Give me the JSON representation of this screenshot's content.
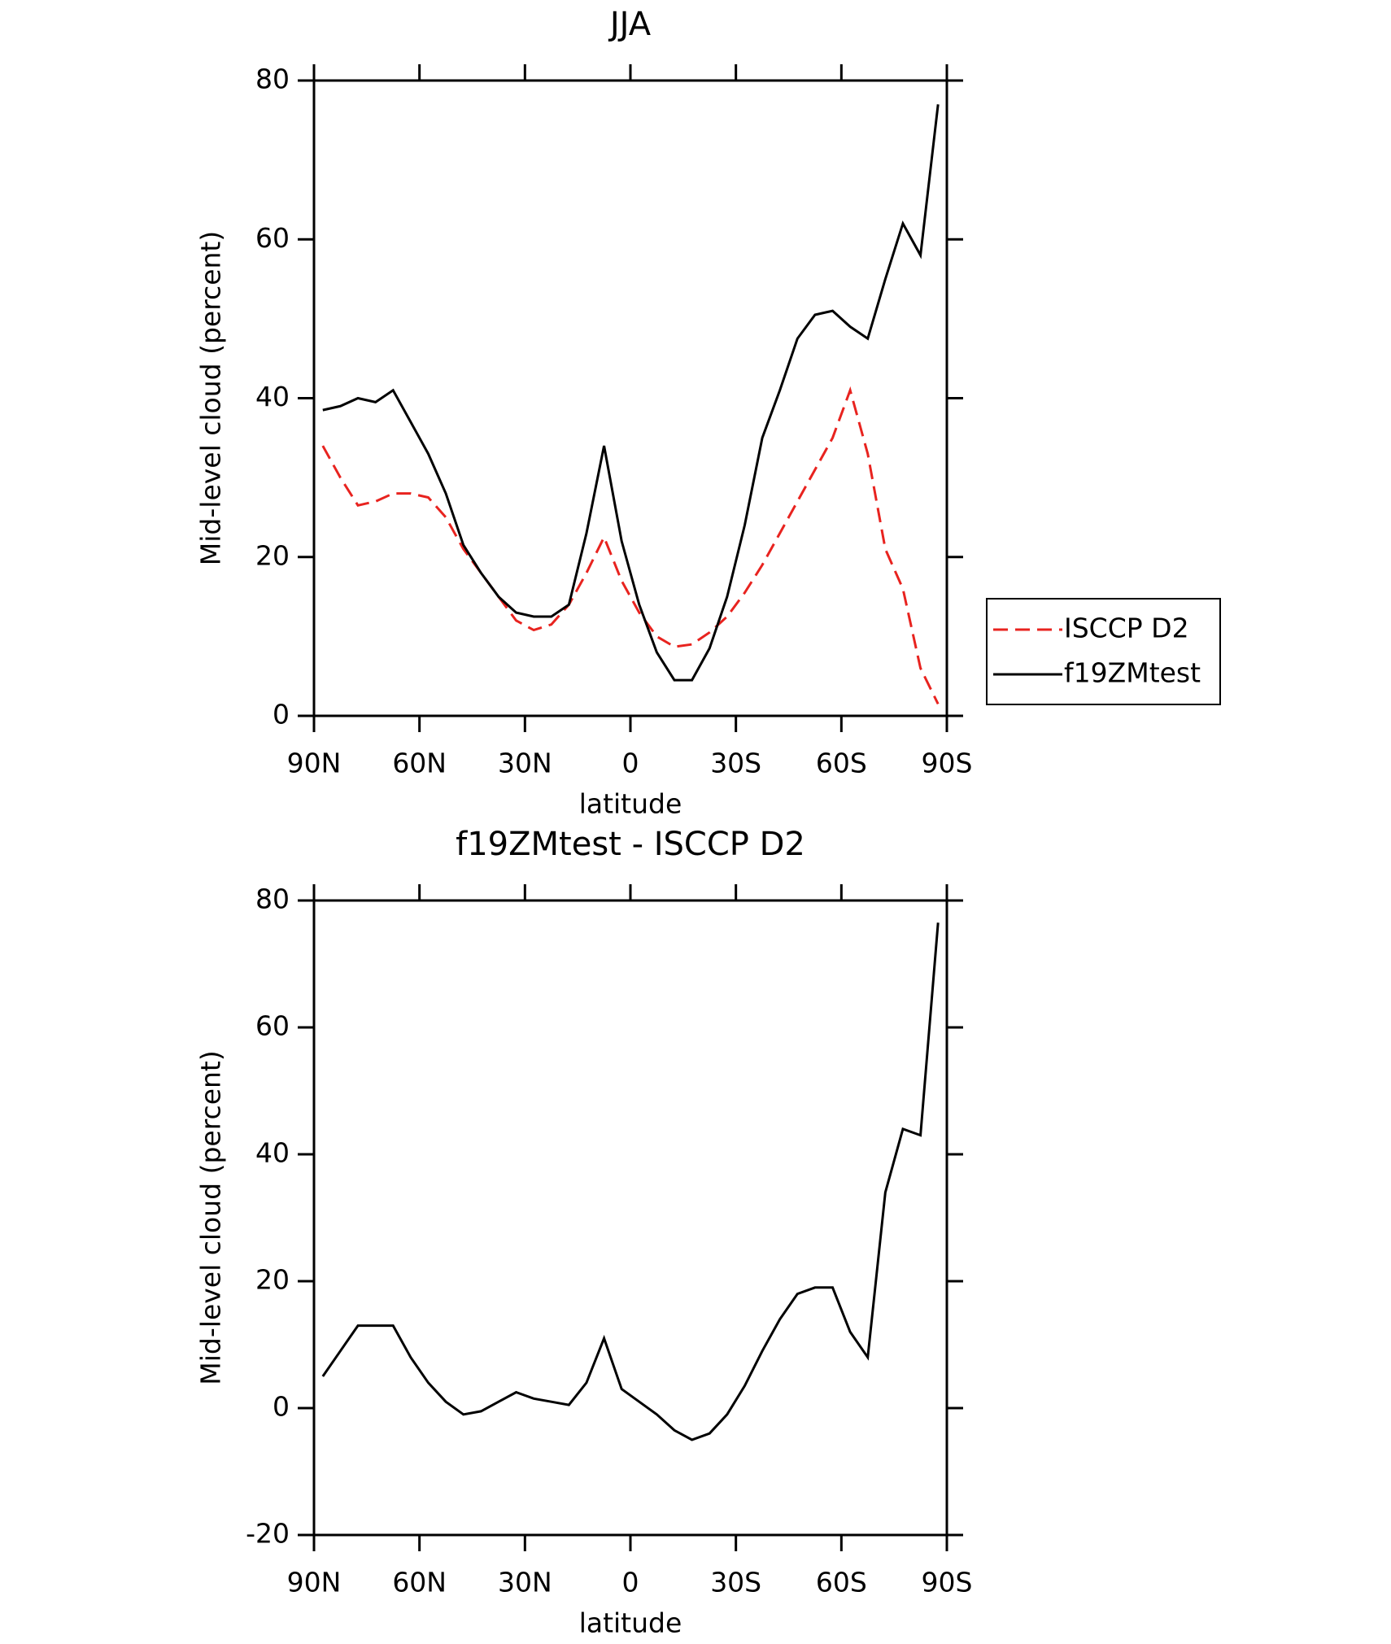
{
  "chart_data": [
    {
      "type": "line",
      "title": "JJA",
      "x_label": "latitude",
      "y_label": "Mid-level cloud (percent)",
      "x": [
        87.5,
        82.5,
        77.5,
        72.5,
        67.5,
        62.5,
        57.5,
        52.5,
        47.5,
        42.5,
        37.5,
        32.5,
        27.5,
        22.5,
        17.5,
        12.5,
        7.5,
        2.5,
        -2.5,
        -7.5,
        -12.5,
        -17.5,
        -22.5,
        -27.5,
        -32.5,
        -37.5,
        -42.5,
        -47.5,
        -52.5,
        -57.5,
        -62.5,
        -67.5,
        -72.5,
        -77.5,
        -82.5,
        -87.5
      ],
      "series": [
        {
          "name": "ISCCP D2",
          "color": "#e8231f",
          "dash": true,
          "values": [
            34,
            30,
            26.5,
            27,
            28,
            28,
            27.5,
            25,
            21,
            18,
            15,
            12,
            10.8,
            11.5,
            14,
            18,
            22.5,
            17,
            13,
            10,
            8.7,
            9,
            10.5,
            12.5,
            15.5,
            19,
            23,
            27,
            31,
            35,
            41,
            33,
            21,
            16,
            6,
            1.5
          ]
        },
        {
          "name": "f19ZMtest",
          "color": "#000000",
          "dash": false,
          "values": [
            38.5,
            39,
            40,
            39.5,
            41,
            37,
            33,
            28,
            21.5,
            18,
            15,
            13,
            12.5,
            12.5,
            14,
            23,
            34,
            22,
            14,
            8,
            4.5,
            4.5,
            8.5,
            15,
            24,
            35,
            41,
            47.5,
            50.5,
            51,
            49,
            47.5,
            55,
            62,
            58,
            77
          ]
        }
      ],
      "xlim": [
        90,
        -90
      ],
      "xticks": [
        {
          "value": 90,
          "label": "90N"
        },
        {
          "value": 60,
          "label": "60N"
        },
        {
          "value": 30,
          "label": "30N"
        },
        0,
        {
          "value": -30,
          "label": "30S"
        },
        {
          "value": -60,
          "label": "60S"
        },
        {
          "value": -90,
          "label": "90S"
        }
      ],
      "ylim": [
        0,
        80
      ],
      "yticks": [
        0,
        20,
        40,
        60,
        80
      ],
      "legend": "outside-right"
    },
    {
      "type": "line",
      "title": "f19ZMtest - ISCCP D2",
      "x_label": "latitude",
      "y_label": "Mid-level cloud (percent)",
      "x": [
        87.5,
        82.5,
        77.5,
        72.5,
        67.5,
        62.5,
        57.5,
        52.5,
        47.5,
        42.5,
        37.5,
        32.5,
        27.5,
        22.5,
        17.5,
        12.5,
        7.5,
        2.5,
        -2.5,
        -7.5,
        -12.5,
        -17.5,
        -22.5,
        -27.5,
        -32.5,
        -37.5,
        -42.5,
        -47.5,
        -52.5,
        -57.5,
        -62.5,
        -67.5,
        -72.5,
        -77.5,
        -82.5,
        -87.5
      ],
      "series": [
        {
          "color": "#000000",
          "dash": false,
          "values": [
            5,
            9,
            13,
            13,
            13,
            8,
            4,
            1,
            -1,
            -0.5,
            1,
            2.5,
            1.5,
            1,
            0.5,
            4,
            11,
            3,
            1,
            -1,
            -3.5,
            -5,
            -4,
            -1,
            3.5,
            9,
            14,
            18,
            19,
            19,
            12,
            8,
            34,
            44,
            43,
            76.5
          ]
        }
      ],
      "xlim": [
        90,
        -90
      ],
      "xticks": [
        {
          "value": 90,
          "label": "90N"
        },
        {
          "value": 60,
          "label": "60N"
        },
        {
          "value": 30,
          "label": "30N"
        },
        0,
        {
          "value": -30,
          "label": "30S"
        },
        {
          "value": -60,
          "label": "60S"
        },
        {
          "value": -90,
          "label": "90S"
        }
      ],
      "ylim": [
        -20,
        80
      ],
      "yticks": [
        -20,
        0,
        20,
        40,
        60,
        80
      ]
    }
  ]
}
